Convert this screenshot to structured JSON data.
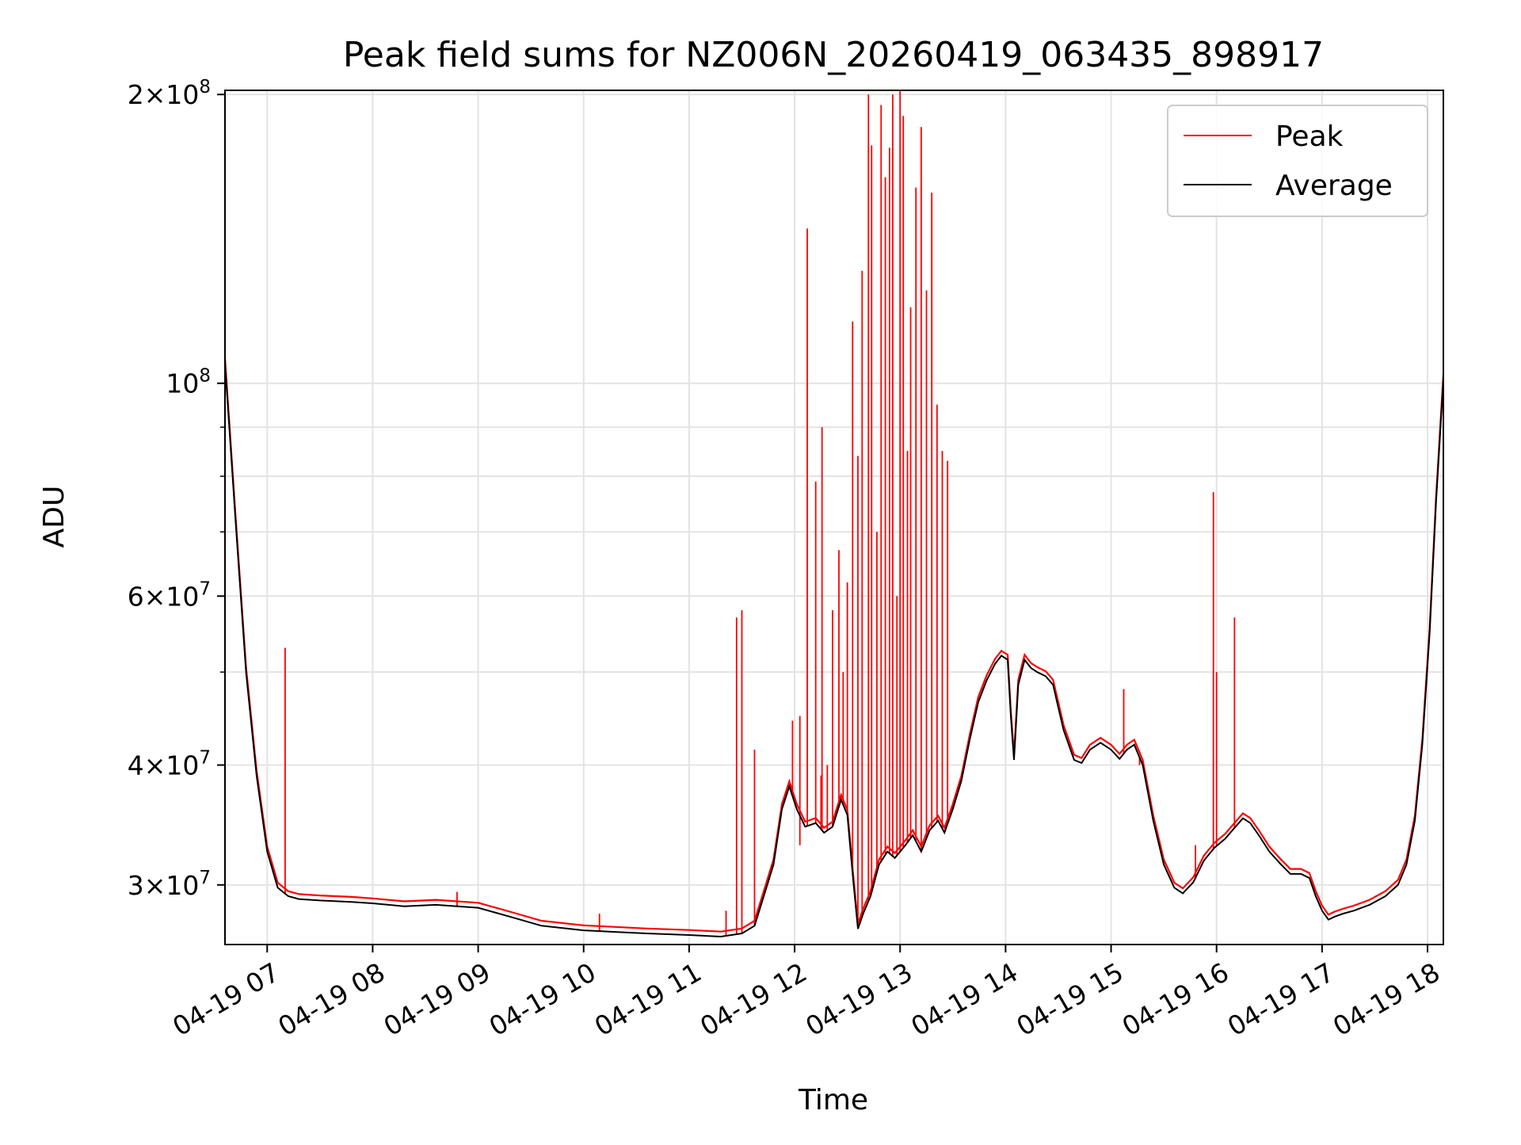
{
  "chart_data": {
    "type": "line",
    "title": "Peak field sums for NZ006N_20260419_063435_898917",
    "xlabel": "Time",
    "ylabel": "ADU",
    "yscale": "log",
    "xlim": [
      6.6,
      18.15
    ],
    "ylim": [
      26000000,
      202000000
    ],
    "grid": true,
    "legend_position": "top-right",
    "x_unit": "hours since 2026-04-19 00:00",
    "x_ticks": [
      {
        "value": 7,
        "label": "04-19 07"
      },
      {
        "value": 8,
        "label": "04-19 08"
      },
      {
        "value": 9,
        "label": "04-19 09"
      },
      {
        "value": 10,
        "label": "04-19 10"
      },
      {
        "value": 11,
        "label": "04-19 11"
      },
      {
        "value": 12,
        "label": "04-19 12"
      },
      {
        "value": 13,
        "label": "04-19 13"
      },
      {
        "value": 14,
        "label": "04-19 14"
      },
      {
        "value": 15,
        "label": "04-19 15"
      },
      {
        "value": 16,
        "label": "04-19 16"
      },
      {
        "value": 17,
        "label": "04-19 17"
      },
      {
        "value": 18,
        "label": "04-19 18"
      }
    ],
    "y_major_ticks": [
      {
        "value": 200000000,
        "base": "2",
        "exp": "8",
        "mantissa": true
      },
      {
        "value": 100000000,
        "base": "",
        "exp": "8",
        "mantissa": false
      },
      {
        "value": 60000000,
        "base": "6",
        "exp": "7",
        "mantissa": true
      },
      {
        "value": 40000000,
        "base": "4",
        "exp": "7",
        "mantissa": true
      },
      {
        "value": 30000000,
        "base": "3",
        "exp": "7",
        "mantissa": true
      }
    ],
    "y_minor_ticks": [
      90000000,
      80000000,
      70000000,
      50000000
    ],
    "series": [
      {
        "name": "Peak",
        "color": "#ff0000",
        "spikes": [
          [
            7.17,
            53000000
          ],
          [
            8.8,
            29500000
          ],
          [
            10.15,
            28000000
          ],
          [
            11.35,
            28200000
          ],
          [
            11.98,
            44500000
          ],
          [
            12.05,
            45000000
          ],
          [
            11.45,
            57000000
          ],
          [
            11.5,
            58000000
          ],
          [
            11.62,
            41500000
          ],
          [
            12.05,
            33000000
          ],
          [
            12.25,
            39000000
          ],
          [
            12.12,
            145000000
          ],
          [
            12.2,
            79000000
          ],
          [
            12.26,
            90000000
          ],
          [
            12.31,
            40000000
          ],
          [
            12.36,
            58000000
          ],
          [
            12.42,
            67000000
          ],
          [
            12.46,
            50000000
          ],
          [
            12.5,
            62000000
          ],
          [
            12.55,
            116000000
          ],
          [
            12.6,
            84000000
          ],
          [
            12.64,
            131000000
          ],
          [
            12.7,
            200000000
          ],
          [
            12.73,
            177000000
          ],
          [
            12.78,
            70000000
          ],
          [
            12.82,
            195000000
          ],
          [
            12.86,
            164000000
          ],
          [
            12.9,
            176000000
          ],
          [
            12.93,
            200000000
          ],
          [
            12.97,
            60000000
          ],
          [
            13.0,
            202000000
          ],
          [
            13.03,
            190000000
          ],
          [
            13.07,
            85000000
          ],
          [
            13.1,
            120000000
          ],
          [
            13.15,
            160000000
          ],
          [
            13.2,
            185000000
          ],
          [
            13.25,
            125000000
          ],
          [
            13.3,
            158000000
          ],
          [
            13.35,
            95000000
          ],
          [
            13.4,
            85000000
          ],
          [
            13.45,
            83000000
          ],
          [
            15.12,
            48000000
          ],
          [
            15.27,
            40000000
          ],
          [
            15.8,
            33000000
          ],
          [
            15.97,
            77000000
          ],
          [
            16.0,
            50000000
          ],
          [
            16.17,
            57000000
          ]
        ]
      },
      {
        "name": "Average",
        "color": "#000000",
        "points": [
          [
            6.6,
            105000000
          ],
          [
            6.7,
            72000000
          ],
          [
            6.8,
            50000000
          ],
          [
            6.9,
            39000000
          ],
          [
            7.0,
            32500000
          ],
          [
            7.1,
            29800000
          ],
          [
            7.2,
            29200000
          ],
          [
            7.3,
            29000000
          ],
          [
            7.5,
            28900000
          ],
          [
            7.8,
            28800000
          ],
          [
            8.0,
            28700000
          ],
          [
            8.3,
            28500000
          ],
          [
            8.6,
            28600000
          ],
          [
            9.0,
            28400000
          ],
          [
            9.3,
            27800000
          ],
          [
            9.6,
            27200000
          ],
          [
            10.0,
            26900000
          ],
          [
            10.3,
            26800000
          ],
          [
            10.6,
            26700000
          ],
          [
            11.0,
            26600000
          ],
          [
            11.3,
            26500000
          ],
          [
            11.5,
            26700000
          ],
          [
            11.62,
            27200000
          ],
          [
            11.72,
            29500000
          ],
          [
            11.8,
            31500000
          ],
          [
            11.88,
            36000000
          ],
          [
            11.95,
            38000000
          ],
          [
            12.02,
            36000000
          ],
          [
            12.1,
            34500000
          ],
          [
            12.2,
            34800000
          ],
          [
            12.28,
            34000000
          ],
          [
            12.36,
            34500000
          ],
          [
            12.44,
            36800000
          ],
          [
            12.5,
            35500000
          ],
          [
            12.56,
            30000000
          ],
          [
            12.6,
            27000000
          ],
          [
            12.65,
            28000000
          ],
          [
            12.72,
            29200000
          ],
          [
            12.8,
            31500000
          ],
          [
            12.88,
            32500000
          ],
          [
            12.95,
            32000000
          ],
          [
            13.05,
            33000000
          ],
          [
            13.12,
            33800000
          ],
          [
            13.2,
            32500000
          ],
          [
            13.28,
            34200000
          ],
          [
            13.36,
            35000000
          ],
          [
            13.42,
            34000000
          ],
          [
            13.5,
            36000000
          ],
          [
            13.58,
            38500000
          ],
          [
            13.66,
            42500000
          ],
          [
            13.74,
            46500000
          ],
          [
            13.82,
            49000000
          ],
          [
            13.9,
            51000000
          ],
          [
            13.96,
            52000000
          ],
          [
            14.02,
            51500000
          ],
          [
            14.05,
            45000000
          ],
          [
            14.08,
            40500000
          ],
          [
            14.12,
            48500000
          ],
          [
            14.18,
            51500000
          ],
          [
            14.24,
            50500000
          ],
          [
            14.3,
            50000000
          ],
          [
            14.38,
            49500000
          ],
          [
            14.45,
            48500000
          ],
          [
            14.55,
            43500000
          ],
          [
            14.65,
            40500000
          ],
          [
            14.72,
            40200000
          ],
          [
            14.8,
            41500000
          ],
          [
            14.9,
            42200000
          ],
          [
            15.0,
            41500000
          ],
          [
            15.08,
            40600000
          ],
          [
            15.15,
            41500000
          ],
          [
            15.22,
            42000000
          ],
          [
            15.3,
            40000000
          ],
          [
            15.4,
            35000000
          ],
          [
            15.5,
            31500000
          ],
          [
            15.6,
            29800000
          ],
          [
            15.68,
            29400000
          ],
          [
            15.78,
            30200000
          ],
          [
            15.88,
            31800000
          ],
          [
            15.98,
            32800000
          ],
          [
            16.08,
            33500000
          ],
          [
            16.16,
            34300000
          ],
          [
            16.25,
            35200000
          ],
          [
            16.32,
            34800000
          ],
          [
            16.4,
            33800000
          ],
          [
            16.5,
            32500000
          ],
          [
            16.6,
            31600000
          ],
          [
            16.7,
            30800000
          ],
          [
            16.8,
            30800000
          ],
          [
            16.88,
            30500000
          ],
          [
            16.94,
            29200000
          ],
          [
            17.0,
            28200000
          ],
          [
            17.06,
            27600000
          ],
          [
            17.12,
            27800000
          ],
          [
            17.2,
            28000000
          ],
          [
            17.3,
            28200000
          ],
          [
            17.45,
            28600000
          ],
          [
            17.6,
            29200000
          ],
          [
            17.72,
            30000000
          ],
          [
            17.8,
            31500000
          ],
          [
            17.88,
            35000000
          ],
          [
            17.95,
            42000000
          ],
          [
            18.02,
            55000000
          ],
          [
            18.08,
            75000000
          ],
          [
            18.15,
            101000000
          ]
        ]
      }
    ]
  }
}
